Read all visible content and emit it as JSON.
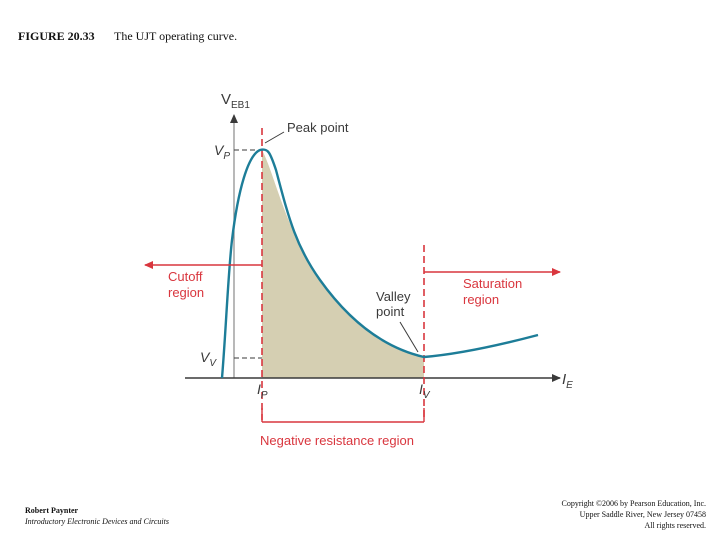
{
  "caption": {
    "figure_number": "FIGURE 20.33",
    "title": "The UJT operating curve."
  },
  "diagram": {
    "y_axis_label_main": "V",
    "y_axis_label_sub": "EB1",
    "x_axis_label_main": "I",
    "x_axis_label_sub": "E",
    "vp_main": "V",
    "vp_sub": "P",
    "vv_main": "V",
    "vv_sub": "V",
    "ip_main": "I",
    "ip_sub": "P",
    "iv_main": "I",
    "iv_sub": "V",
    "peak_point": "Peak point",
    "valley_point_line1": "Valley",
    "valley_point_line2": "point",
    "cutoff_line1": "Cutoff",
    "cutoff_line2": "region",
    "saturation_line1": "Saturation",
    "saturation_line2": "region",
    "negative_resistance": "Negative resistance region",
    "colors": {
      "curve": "#1d7d98",
      "shading": "#d5cfb2",
      "accent_red": "#d9363e",
      "axis": "#3a3a3a"
    }
  },
  "footer": {
    "author": "Robert Paynter",
    "book": "Introductory Electronic Devices and Circuits",
    "copyright_line1": "Copyright ©2006 by Pearson Education, Inc.",
    "copyright_line2": "Upper Saddle River, New Jersey 07458",
    "copyright_line3": "All rights reserved."
  }
}
